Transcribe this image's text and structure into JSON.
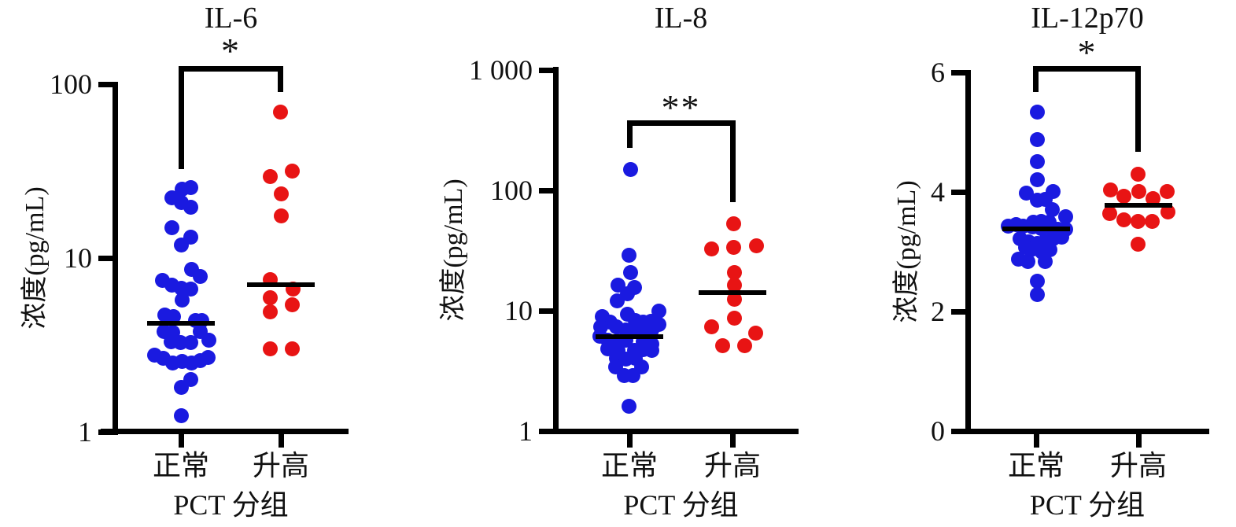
{
  "figure": {
    "background": "#ffffff",
    "group_axis_label": "PCT 分组",
    "categories": [
      "正常",
      "升高"
    ]
  },
  "colors": {
    "normal_group": "#1a1ae0",
    "elevated_group": "#e81414",
    "axis": "#000000",
    "text": "#111111"
  },
  "chart_data": [
    {
      "type": "scatter",
      "title": "IL-6",
      "ylabel": "浓度(pg/mL)",
      "xlabel": "PCT 分组",
      "significance": "*",
      "yscale": "log",
      "ylim": [
        1,
        100
      ],
      "grid": false,
      "yticks": [
        {
          "label": "100",
          "value": 100
        },
        {
          "label": "10",
          "value": 10
        },
        {
          "label": "1",
          "value": 1
        }
      ],
      "groups": [
        {
          "label": "正常",
          "color": "normal_group",
          "median": 4.2,
          "points": [
            [
              1,
              25.0
            ],
            [
              12,
              25.3
            ],
            [
              -12,
              22.3
            ],
            [
              0,
              20.9
            ],
            [
              12,
              19.5
            ],
            [
              -12,
              14.9
            ],
            [
              12,
              13.2
            ],
            [
              0,
              11.9
            ],
            [
              13,
              8.6
            ],
            [
              24,
              7.8
            ],
            [
              -24,
              7.4
            ],
            [
              -12,
              7.0
            ],
            [
              0,
              6.7
            ],
            [
              12,
              6.6
            ],
            [
              1,
              5.7
            ],
            [
              -21,
              4.7
            ],
            [
              -10,
              4.6
            ],
            [
              18,
              4.35
            ],
            [
              26,
              4.35
            ],
            [
              -22,
              3.76
            ],
            [
              -11,
              3.73
            ],
            [
              24,
              3.76
            ],
            [
              -13,
              3.31
            ],
            [
              -1,
              3.26
            ],
            [
              12,
              3.26
            ],
            [
              35,
              3.36
            ],
            [
              -34,
              2.76
            ],
            [
              -23,
              2.64
            ],
            [
              -11,
              2.49
            ],
            [
              1,
              2.54
            ],
            [
              13,
              2.49
            ],
            [
              24,
              2.56
            ],
            [
              34,
              2.67
            ],
            [
              12,
              2.0
            ],
            [
              0,
              1.8
            ],
            [
              0,
              1.24
            ]
          ]
        },
        {
          "label": "升高",
          "color": "elevated_group",
          "median": 7.0,
          "points": [
            [
              -1,
              69
            ],
            [
              14,
              31.5
            ],
            [
              -14,
              29.5
            ],
            [
              0,
              23.3
            ],
            [
              0,
              17.5
            ],
            [
              -14,
              7.5
            ],
            [
              15,
              6.6
            ],
            [
              -14,
              5.9
            ],
            [
              14,
              5.4
            ],
            [
              -14,
              4.9
            ],
            [
              -14,
              3.0
            ],
            [
              14,
              3.0
            ]
          ]
        }
      ]
    },
    {
      "type": "scatter",
      "title": "IL-8",
      "ylabel": "浓度(pg/mL)",
      "xlabel": "PCT 分组",
      "significance": "**",
      "yscale": "log",
      "ylim": [
        1,
        1000
      ],
      "grid": false,
      "yticks": [
        {
          "label": "1 000",
          "value": 1000
        },
        {
          "label": "100",
          "value": 100
        },
        {
          "label": "10",
          "value": 10
        },
        {
          "label": "1",
          "value": 1
        }
      ],
      "groups": [
        {
          "label": "正常",
          "color": "normal_group",
          "median": 6.1,
          "points": [
            [
              1,
              150
            ],
            [
              -1,
              28.7
            ],
            [
              1,
              20.9
            ],
            [
              -15,
              16.2
            ],
            [
              6,
              15.7
            ],
            [
              -3,
              13.9
            ],
            [
              -16,
              12.0
            ],
            [
              -35,
              9.0
            ],
            [
              -3,
              9.3
            ],
            [
              37,
              10.0
            ],
            [
              -25,
              8.1
            ],
            [
              7,
              8.3
            ],
            [
              17,
              8.1
            ],
            [
              27,
              8.2
            ],
            [
              37,
              7.7
            ],
            [
              -37,
              7.3
            ],
            [
              -17,
              7.35
            ],
            [
              -5,
              6.9
            ],
            [
              6,
              6.85
            ],
            [
              17,
              7.0
            ],
            [
              28,
              6.95
            ],
            [
              -38,
              6.15
            ],
            [
              -28,
              5.65
            ],
            [
              -16,
              5.6
            ],
            [
              -5,
              5.7
            ],
            [
              17,
              5.55
            ],
            [
              28,
              5.3
            ],
            [
              -28,
              4.85
            ],
            [
              -15,
              4.7
            ],
            [
              6,
              4.7
            ],
            [
              17,
              4.75
            ],
            [
              28,
              4.65
            ],
            [
              -17,
              4.0
            ],
            [
              -5,
              3.95
            ],
            [
              7,
              4.0
            ],
            [
              -18,
              3.4
            ],
            [
              15,
              3.4
            ],
            [
              -7,
              2.9
            ],
            [
              4,
              2.9
            ],
            [
              -1,
              1.6
            ]
          ]
        },
        {
          "label": "升高",
          "color": "elevated_group",
          "median": 14.1,
          "points": [
            [
              1,
              53
            ],
            [
              1,
              33.8
            ],
            [
              -27,
              32.8
            ],
            [
              30,
              34.8
            ],
            [
              2,
              20.9
            ],
            [
              2,
              16.2
            ],
            [
              2,
              12.5
            ],
            [
              2,
              8.7
            ],
            [
              -27,
              7.4
            ],
            [
              29,
              6.5
            ],
            [
              -13,
              5.15
            ],
            [
              15,
              5.15
            ]
          ]
        }
      ]
    },
    {
      "type": "scatter",
      "title": "IL-12p70",
      "ylabel": "浓度(pg/mL)",
      "xlabel": "PCT 分组",
      "significance": "*",
      "yscale": "linear",
      "ylim": [
        0,
        6
      ],
      "grid": false,
      "yticks": [
        {
          "label": "6",
          "value": 6
        },
        {
          "label": "4",
          "value": 4
        },
        {
          "label": "2",
          "value": 2
        },
        {
          "label": "0",
          "value": 0
        }
      ],
      "groups": [
        {
          "label": "正常",
          "color": "normal_group",
          "median": 3.38,
          "points": [
            [
              1,
              5.33
            ],
            [
              1,
              4.87
            ],
            [
              1,
              4.51
            ],
            [
              1,
              4.2
            ],
            [
              21,
              4.01
            ],
            [
              -13,
              3.98
            ],
            [
              1,
              3.86
            ],
            [
              11,
              3.87
            ],
            [
              20,
              3.7
            ],
            [
              37,
              3.58
            ],
            [
              -4,
              3.5
            ],
            [
              6,
              3.51
            ],
            [
              16,
              3.5
            ],
            [
              -36,
              3.43
            ],
            [
              -26,
              3.45
            ],
            [
              -17,
              3.43
            ],
            [
              -5,
              3.41
            ],
            [
              6,
              3.39
            ],
            [
              16,
              3.41
            ],
            [
              27,
              3.37
            ],
            [
              37,
              3.37
            ],
            [
              -21,
              3.22
            ],
            [
              -10,
              3.17
            ],
            [
              1,
              3.14
            ],
            [
              11,
              3.18
            ],
            [
              21,
              3.22
            ],
            [
              32,
              3.25
            ],
            [
              -14,
              3.07
            ],
            [
              -4,
              3.04
            ],
            [
              7,
              3.0
            ],
            [
              17,
              3.03
            ],
            [
              -23,
              2.87
            ],
            [
              -11,
              2.83
            ],
            [
              11,
              2.84
            ],
            [
              1,
              2.51
            ],
            [
              1,
              2.28
            ]
          ]
        },
        {
          "label": "升高",
          "color": "elevated_group",
          "median": 3.78,
          "points": [
            [
              -1,
              4.3
            ],
            [
              -36,
              4.03
            ],
            [
              0,
              4.01
            ],
            [
              36,
              4.01
            ],
            [
              -19,
              3.93
            ],
            [
              18,
              3.89
            ],
            [
              -37,
              3.64
            ],
            [
              37,
              3.66
            ],
            [
              -19,
              3.53
            ],
            [
              -1,
              3.51
            ],
            [
              17,
              3.51
            ],
            [
              -1,
              3.13
            ]
          ]
        }
      ]
    }
  ]
}
